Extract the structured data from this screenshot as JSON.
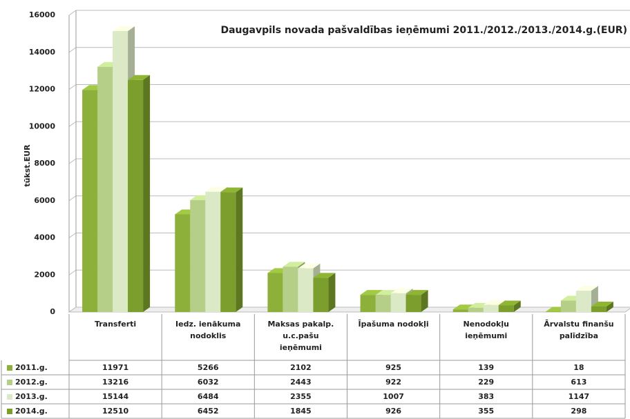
{
  "chart_data": {
    "type": "bar3d",
    "title": "Daugavpils novada pašvaldības ieņēmumi 2011./2012./2013./2014.g.(EUR)",
    "y_label": "tūkst.EUR",
    "categories": [
      "Transferti",
      "Iedz. ienākuma nodoklis",
      "Maksas pakalp. u.c.pašu ieņēmumi",
      "Īpašuma nodokļi",
      "Nenodokļu ieņēmumi",
      "Ārvalstu finanšu palīdzība"
    ],
    "series": [
      {
        "name": "2011.g.",
        "color": "#8db03a",
        "values": [
          11971,
          5266,
          2102,
          925,
          139,
          18
        ]
      },
      {
        "name": "2012.g.",
        "color": "#b6cf88",
        "values": [
          13216,
          6032,
          2443,
          922,
          229,
          613
        ]
      },
      {
        "name": "2013.g.",
        "color": "#dce9c6",
        "values": [
          15144,
          6484,
          2355,
          1007,
          383,
          1147
        ]
      },
      {
        "name": "2014.g.",
        "color": "#7c9e2c",
        "values": [
          12510,
          6452,
          1845,
          926,
          355,
          298
        ]
      }
    ],
    "ylim": [
      0,
      16000
    ],
    "yticks": [
      0,
      2000,
      4000,
      6000,
      8000,
      10000,
      12000,
      14000,
      16000
    ],
    "grid": true
  }
}
